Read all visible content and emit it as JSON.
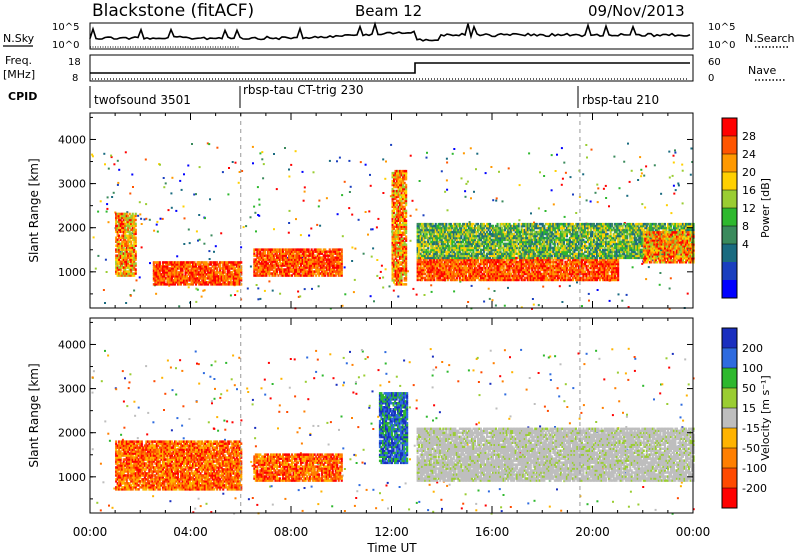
{
  "header": {
    "station": "Blackstone (fitACF)",
    "beam": "Beam 12",
    "date": "09/Nov/2013"
  },
  "strip": {
    "nsky_label": "N.Sky",
    "nsky_ticks": [
      "10^5",
      "10^0"
    ],
    "nsearch_label": "N.Search",
    "nsearch_ticks": [
      "10^5",
      "10^0"
    ],
    "freq_label_line1": "Freq.",
    "freq_label_line2": "[MHz]",
    "freq_ticks": [
      "18",
      "8"
    ],
    "nave_label": "Nave",
    "nave_ticks": [
      "60",
      "0"
    ],
    "cpid_label": "CPID",
    "cpid_segments": [
      {
        "name": "twofsound 3501",
        "start": 0,
        "end": 6
      },
      {
        "name": "rbsp-tau CT-trig 230",
        "start": 6,
        "end": 19.5
      },
      {
        "name": "rbsp-tau 210",
        "start": 19.5,
        "end": 24
      }
    ]
  },
  "chart_data": [
    {
      "type": "heatmap",
      "name": "power",
      "ylabel": "Slant Range [km]",
      "xlim": [
        0,
        24
      ],
      "ylim": [
        180,
        4600
      ],
      "yticks": [
        "4000",
        "3000",
        "2000",
        "1000"
      ],
      "colorbar": {
        "label": "Power [dB]",
        "ticks": [
          "28",
          "24",
          "20",
          "16",
          "12",
          "8",
          "4"
        ],
        "colors": [
          "#ff0000",
          "#ff5500",
          "#ff9900",
          "#ffd000",
          "#9acd32",
          "#2eb82e",
          "#3a8a5c",
          "#1a6b80",
          "#1a3fbf",
          "#0000ff"
        ]
      },
      "features": [
        {
          "t0": 1.0,
          "t1": 1.8,
          "r0": 900,
          "r1": 2300,
          "level": "high"
        },
        {
          "t0": 2.5,
          "t1": 6.0,
          "r0": 700,
          "r1": 1200,
          "level": "max"
        },
        {
          "t0": 6.5,
          "t1": 10.0,
          "r0": 900,
          "r1": 1500,
          "level": "max"
        },
        {
          "t0": 12.0,
          "t1": 12.6,
          "r0": 700,
          "r1": 3300,
          "level": "high"
        },
        {
          "t0": 13.0,
          "t1": 21.0,
          "r0": 800,
          "r1": 1300,
          "level": "max"
        },
        {
          "t0": 13.0,
          "t1": 24.0,
          "r0": 1300,
          "r1": 2100,
          "level": "mid"
        },
        {
          "t0": 22.0,
          "t1": 24.0,
          "r0": 1200,
          "r1": 1900,
          "level": "high"
        }
      ]
    },
    {
      "type": "heatmap",
      "name": "velocity",
      "ylabel": "Slant Range [km]",
      "xlim": [
        0,
        24
      ],
      "ylim": [
        180,
        4600
      ],
      "yticks": [
        "4000",
        "3000",
        "2000",
        "1000"
      ],
      "colorbar": {
        "label": "Velocity [m s⁻¹]",
        "ticks": [
          "200",
          "100",
          "50",
          "15",
          "-15",
          "-50",
          "-100",
          "-200"
        ],
        "colors": [
          "#1a2fbf",
          "#2e6bdf",
          "#2eb82e",
          "#9acd32",
          "#bebebe",
          "#ffb300",
          "#ff7f00",
          "#ff4a00",
          "#ff0000"
        ]
      },
      "features": [
        {
          "t0": 1.0,
          "t1": 6.0,
          "r0": 700,
          "r1": 1800,
          "level": "neg"
        },
        {
          "t0": 6.5,
          "t1": 10.0,
          "r0": 900,
          "r1": 1500,
          "level": "neg"
        },
        {
          "t0": 11.5,
          "t1": 12.6,
          "r0": 1300,
          "r1": 2900,
          "level": "pos"
        },
        {
          "t0": 13.0,
          "t1": 24.0,
          "r0": 900,
          "r1": 2100,
          "level": "zero"
        }
      ]
    }
  ],
  "xaxis": {
    "label": "Time UT",
    "ticks": [
      "00:00",
      "04:00",
      "08:00",
      "12:00",
      "16:00",
      "20:00",
      "00:00"
    ]
  }
}
